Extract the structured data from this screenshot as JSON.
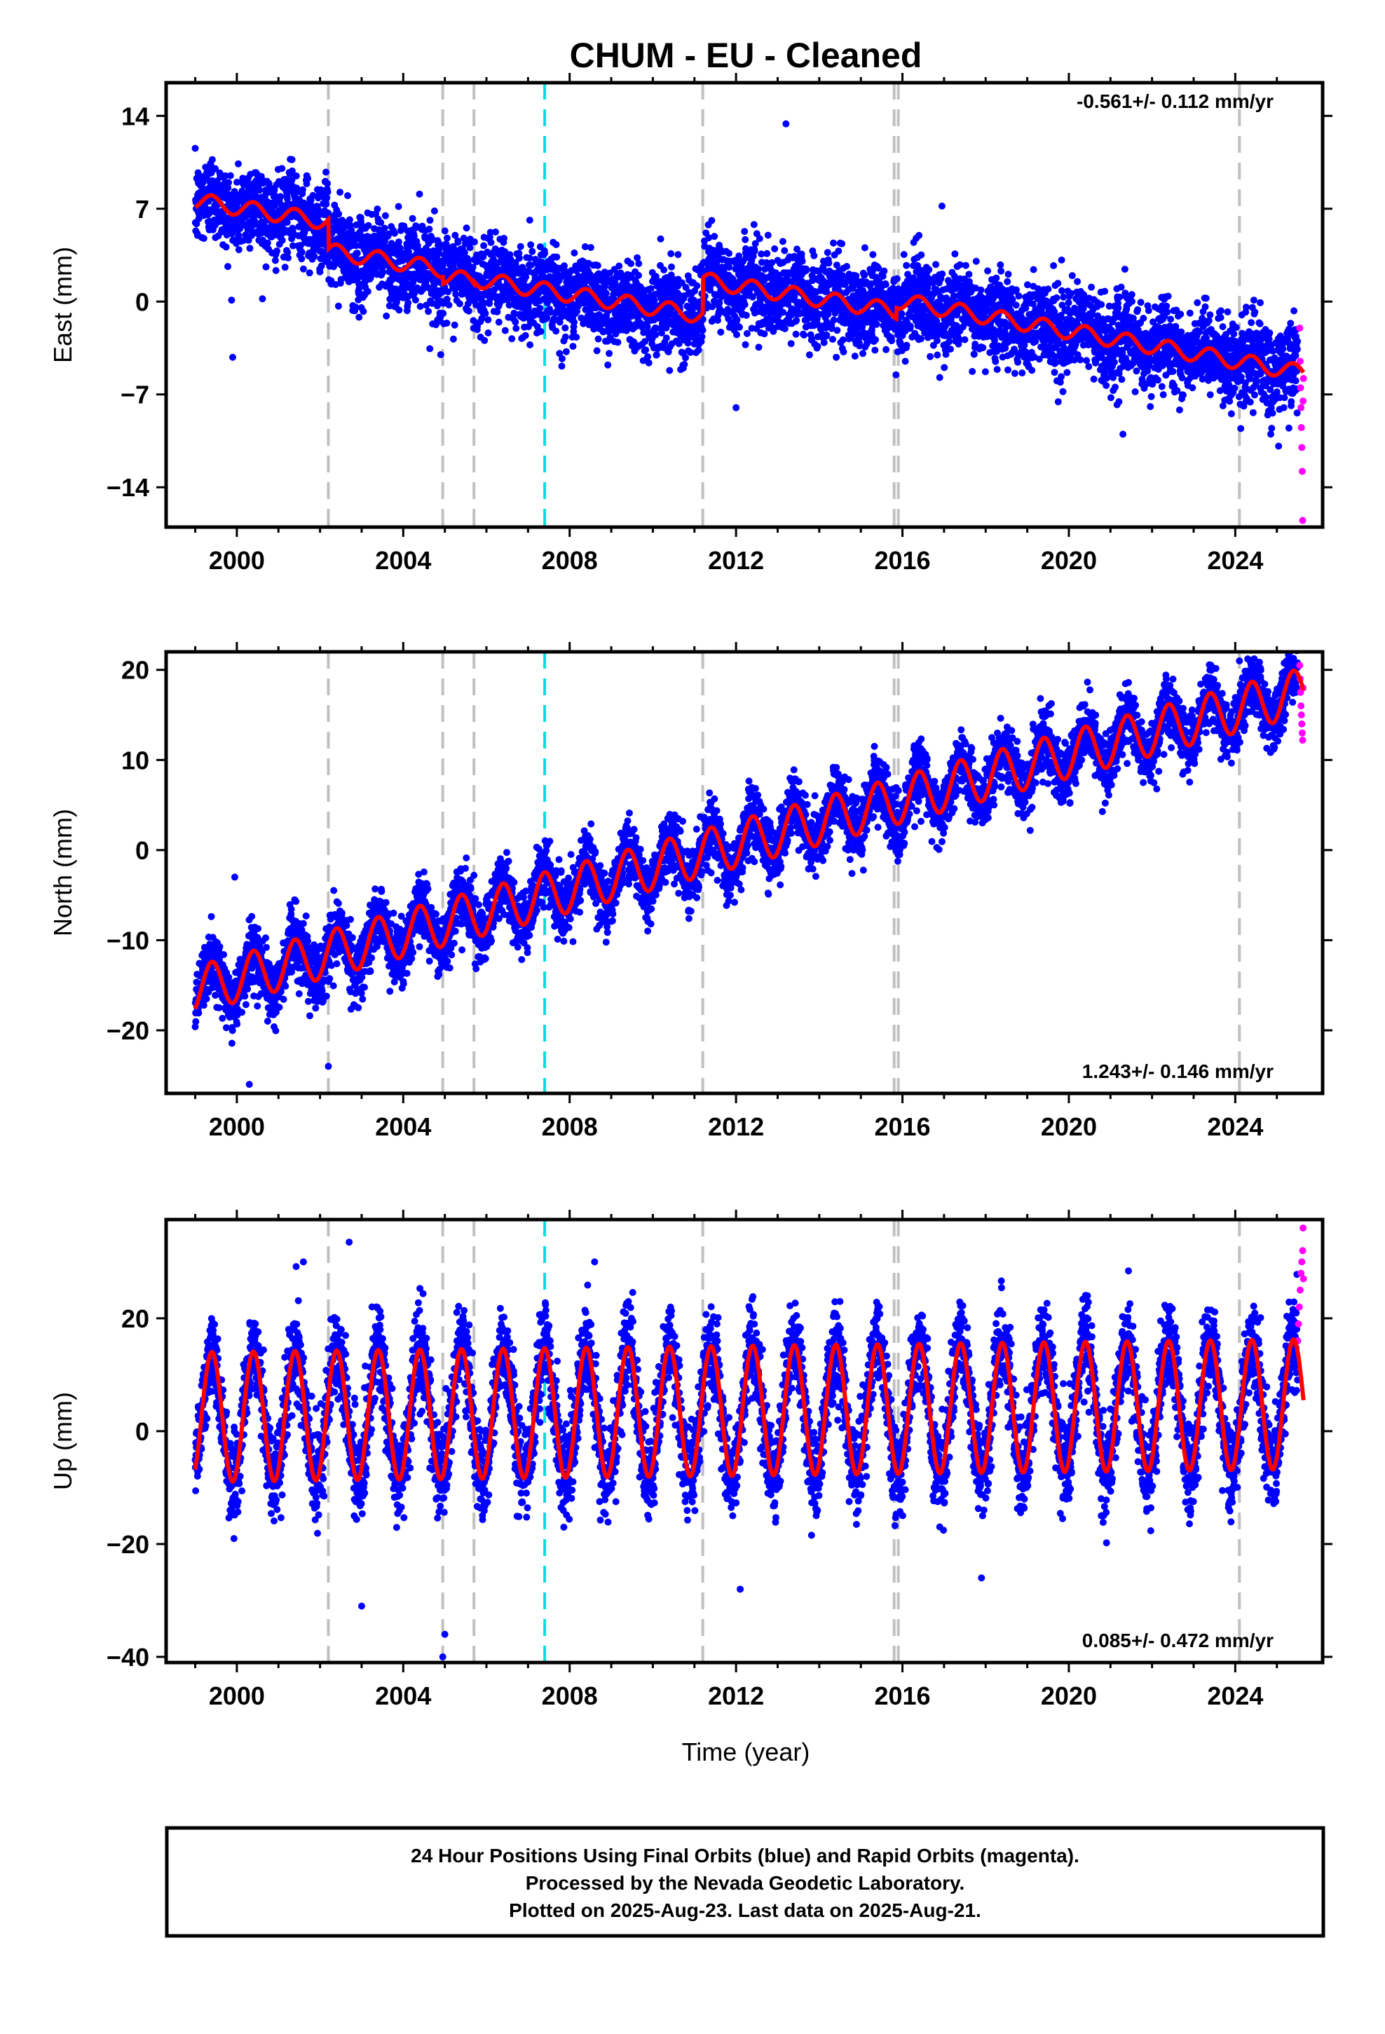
{
  "title": "CHUM  - EU - Cleaned",
  "xlabel": "Time (year)",
  "colors": {
    "final_orbits": "#0000ff",
    "rapid_orbits": "#ff00ff",
    "model": "#ff0000",
    "event_gray": "#c0c0c0",
    "event_cyan": "#00e0e0"
  },
  "footer": {
    "line1": "24 Hour Positions Using Final Orbits (blue) and Rapid Orbits (magenta).",
    "line2": "Processed by the Nevada Geodetic Laboratory.",
    "line3": "Plotted on 2025-Aug-23. Last data on 2025-Aug-21."
  },
  "chart_data": [
    {
      "type": "scatter",
      "ylabel": "East (mm)",
      "rate_text": "-0.561+/- 0.112 mm/yr",
      "rate_position": "top-right",
      "xlim": [
        1998.3,
        2026.1
      ],
      "ylim": [
        -17,
        16.5
      ],
      "xticks": [
        2000,
        2004,
        2008,
        2012,
        2016,
        2020,
        2024
      ],
      "yticks": [
        14,
        7,
        0,
        -7,
        -14
      ],
      "ytick_labels": [
        "14",
        "7",
        "0",
        "−7",
        "−14"
      ],
      "data_range": [
        1999.0,
        2025.64
      ],
      "model_segments": [
        {
          "from": 1999.0,
          "to": 2002.2,
          "offset": 7.6,
          "slope": -0.5
        },
        {
          "from": 2002.2,
          "to": 2004.95,
          "offset": 3.8,
          "slope": -0.5
        },
        {
          "from": 2004.95,
          "to": 2005.7,
          "offset": 1.9,
          "slope": -0.5
        },
        {
          "from": 2005.7,
          "to": 2011.2,
          "offset": 1.7,
          "slope": -0.5
        },
        {
          "from": 2011.2,
          "to": 2015.85,
          "offset": 1.6,
          "slope": -0.5
        },
        {
          "from": 2015.85,
          "to": 2025.64,
          "offset": 0.1,
          "slope": -0.56
        }
      ],
      "seasonal_amplitude": 0.6,
      "scatter_sd": 1.6,
      "outliers": [
        [
          2013.2,
          13.4
        ],
        [
          2016.95,
          7.2
        ],
        [
          1999.9,
          -4.2
        ],
        [
          2012.0,
          -8.0
        ],
        [
          2021.3,
          -10.0
        ],
        [
          2004.9,
          -4.0
        ]
      ],
      "rapid_points": [
        [
          2025.55,
          -2.0
        ],
        [
          2025.56,
          -4.5
        ],
        [
          2025.57,
          -6.5
        ],
        [
          2025.58,
          -8.0
        ],
        [
          2025.59,
          -9.5
        ],
        [
          2025.6,
          -11.0
        ],
        [
          2025.61,
          -12.8
        ],
        [
          2025.62,
          -16.5
        ],
        [
          2025.63,
          -7.5
        ],
        [
          2025.64,
          -5.8
        ]
      ],
      "event_lines": [
        {
          "x": 2002.2,
          "color": "gray"
        },
        {
          "x": 2004.95,
          "color": "gray"
        },
        {
          "x": 2005.7,
          "color": "gray"
        },
        {
          "x": 2007.4,
          "color": "cyan"
        },
        {
          "x": 2011.2,
          "color": "gray"
        },
        {
          "x": 2015.8,
          "color": "gray"
        },
        {
          "x": 2015.9,
          "color": "gray"
        },
        {
          "x": 2024.1,
          "color": "gray"
        }
      ]
    },
    {
      "type": "scatter",
      "ylabel": "North (mm)",
      "rate_text": "1.243+/- 0.146 mm/yr",
      "rate_position": "bottom-right",
      "xlim": [
        1998.3,
        2026.1
      ],
      "ylim": [
        -27,
        22
      ],
      "xticks": [
        2000,
        2004,
        2008,
        2012,
        2016,
        2020,
        2024
      ],
      "yticks": [
        20,
        10,
        0,
        -10,
        -20
      ],
      "ytick_labels": [
        "20",
        "10",
        "0",
        "−10",
        "−20"
      ],
      "data_range": [
        1999.0,
        2025.64
      ],
      "model_segments": [
        {
          "from": 1999.0,
          "to": 2025.64,
          "offset": -15.5,
          "slope": 1.243
        }
      ],
      "seasonal_amplitude": 2.6,
      "scatter_sd": 1.7,
      "outliers": [
        [
          1999.95,
          -3.0
        ],
        [
          2000.3,
          -26.0
        ],
        [
          2002.2,
          -24.0
        ],
        [
          2024.1,
          21.0
        ]
      ],
      "rapid_points": [
        [
          2025.55,
          20.5
        ],
        [
          2025.56,
          19.0
        ],
        [
          2025.57,
          17.5
        ],
        [
          2025.58,
          16.0
        ],
        [
          2025.59,
          15.0
        ],
        [
          2025.6,
          14.0
        ],
        [
          2025.61,
          13.0
        ],
        [
          2025.62,
          12.2
        ],
        [
          2025.63,
          18.0
        ]
      ],
      "event_lines": [
        {
          "x": 2002.2,
          "color": "gray"
        },
        {
          "x": 2004.95,
          "color": "gray"
        },
        {
          "x": 2005.7,
          "color": "gray"
        },
        {
          "x": 2007.4,
          "color": "cyan"
        },
        {
          "x": 2011.2,
          "color": "gray"
        },
        {
          "x": 2015.8,
          "color": "gray"
        },
        {
          "x": 2015.9,
          "color": "gray"
        },
        {
          "x": 2024.1,
          "color": "gray"
        }
      ]
    },
    {
      "type": "scatter",
      "ylabel": "Up (mm)",
      "rate_text": "0.085+/- 0.472 mm/yr",
      "rate_position": "bottom-right",
      "xlim": [
        1998.3,
        2026.1
      ],
      "ylim": [
        -41,
        37.5
      ],
      "xticks": [
        2000,
        2004,
        2008,
        2012,
        2016,
        2020,
        2024
      ],
      "yticks": [
        20,
        0,
        -20,
        -40
      ],
      "ytick_labels": [
        "20",
        "0",
        "−20",
        "−40"
      ],
      "data_range": [
        1999.0,
        2025.64
      ],
      "model_segments": [
        {
          "from": 1999.0,
          "to": 2025.64,
          "offset": 2.5,
          "slope": 0.085
        }
      ],
      "seasonal_amplitude": 11.5,
      "scatter_sd": 4.0,
      "outliers": [
        [
          2004.95,
          -40.0
        ],
        [
          2005.0,
          -36.0
        ],
        [
          2002.7,
          33.5
        ],
        [
          2003.0,
          -31.0
        ],
        [
          2001.6,
          30.0
        ],
        [
          2012.1,
          -28.0
        ],
        [
          2017.9,
          -26.0
        ],
        [
          2008.6,
          30.0
        ]
      ],
      "rapid_points": [
        [
          2025.5,
          16.0
        ],
        [
          2025.52,
          19.0
        ],
        [
          2025.54,
          22.0
        ],
        [
          2025.56,
          25.0
        ],
        [
          2025.58,
          28.0
        ],
        [
          2025.6,
          30.0
        ],
        [
          2025.62,
          32.0
        ],
        [
          2025.63,
          36.0
        ],
        [
          2025.64,
          27.0
        ]
      ],
      "event_lines": [
        {
          "x": 2002.2,
          "color": "gray"
        },
        {
          "x": 2004.95,
          "color": "gray"
        },
        {
          "x": 2005.7,
          "color": "gray"
        },
        {
          "x": 2007.4,
          "color": "cyan"
        },
        {
          "x": 2011.2,
          "color": "gray"
        },
        {
          "x": 2015.8,
          "color": "gray"
        },
        {
          "x": 2015.9,
          "color": "gray"
        },
        {
          "x": 2024.1,
          "color": "gray"
        }
      ]
    }
  ]
}
